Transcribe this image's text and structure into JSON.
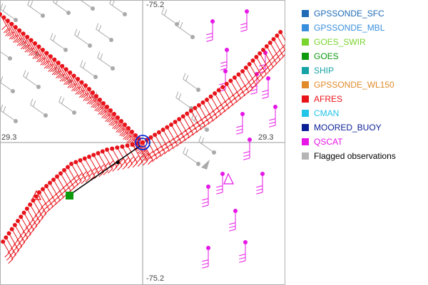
{
  "map": {
    "labels": {
      "top": "-75.2",
      "bottom": "-75.2",
      "left": "29.3",
      "right": "29.3"
    }
  },
  "legend": {
    "items": [
      {
        "id": "gpssonde-sfc",
        "label": "GPSSONDE_SFC",
        "color": "#1f6bb5",
        "text_color": "#1f6bb5"
      },
      {
        "id": "gpssonde-mbl",
        "label": "GPSSONDE_MBL",
        "color": "#3a8fdc",
        "text_color": "#3a8fdc"
      },
      {
        "id": "goes-swir",
        "label": "GOES_SWIR",
        "color": "#7ad42e",
        "text_color": "#7ad42e"
      },
      {
        "id": "goes",
        "label": "GOES",
        "color": "#0d9a0d",
        "text_color": "#0d9a0d"
      },
      {
        "id": "ship",
        "label": "SHIP",
        "color": "#17a3a3",
        "text_color": "#17a3a3"
      },
      {
        "id": "gpssonde-wl150",
        "label": "GPSSONDE_WL150",
        "color": "#e08a2a",
        "text_color": "#e08a2a"
      },
      {
        "id": "afres",
        "label": "AFRES",
        "color": "#e8141b",
        "text_color": "#e8141b"
      },
      {
        "id": "cman",
        "label": "CMAN",
        "color": "#22c4e8",
        "text_color": "#22c4e8"
      },
      {
        "id": "moored-buoy",
        "label": "MOORED_BUOY",
        "color": "#0c2096",
        "text_color": "#0c2096"
      },
      {
        "id": "qscat",
        "label": "QSCAT",
        "color": "#e616e6",
        "text_color": "#e616e6"
      },
      {
        "id": "flagged",
        "label": "Flagged observations",
        "color": "#b5b5b5",
        "text_color": "#000000"
      }
    ]
  },
  "colors": {
    "afres": "#e8141b",
    "qscat": "#e616e6",
    "flagged": "#aaaaaa",
    "goes": "#0d9a0d",
    "center_ring": "#0c2ad6",
    "axis": "#9a9a9a",
    "track": "#000000"
  }
}
